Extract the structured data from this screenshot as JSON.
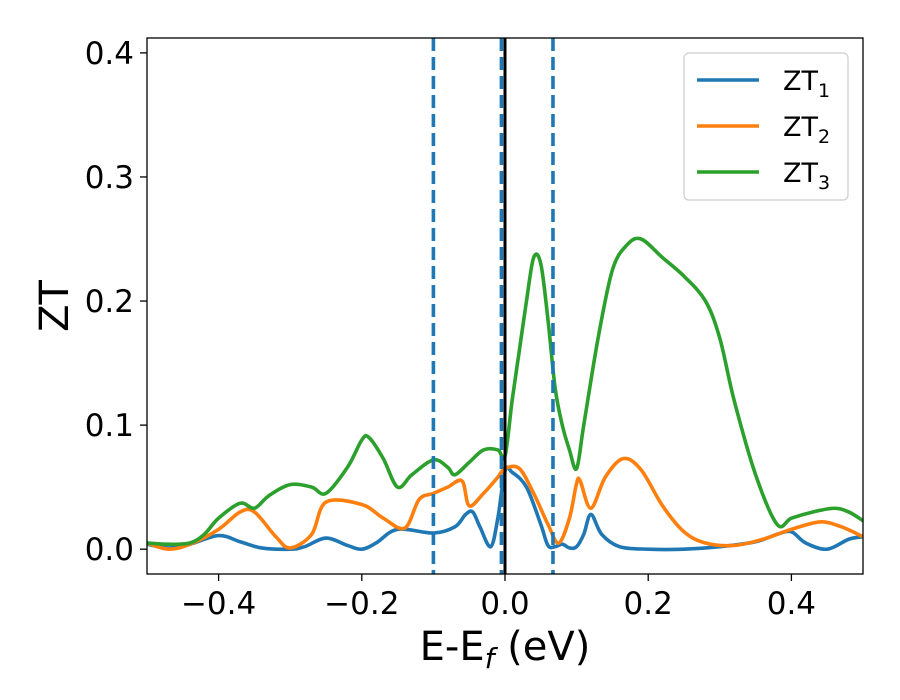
{
  "chart_data": {
    "type": "line",
    "xlabel": {
      "prefix": "E-E",
      "sub": "f",
      "suffix": " (eV)"
    },
    "ylabel": "ZT",
    "xlim": [
      -0.5,
      0.5
    ],
    "ylim": [
      -0.02,
      0.412
    ],
    "xticks": [
      -0.4,
      -0.2,
      0.0,
      0.2,
      0.4
    ],
    "xtick_labels": [
      "−0.4",
      "−0.2",
      "0.0",
      "0.2",
      "0.4"
    ],
    "yticks": [
      0.0,
      0.1,
      0.2,
      0.3,
      0.4
    ],
    "ytick_labels": [
      "0.0",
      "0.1",
      "0.2",
      "0.3",
      "0.4"
    ],
    "grid": false,
    "legend_position": "top-right",
    "vlines": [
      {
        "x": -0.1,
        "style": "dashed",
        "color": "#1f77b4"
      },
      {
        "x": -0.005,
        "style": "dashed",
        "color": "#1f77b4"
      },
      {
        "x": 0.067,
        "style": "dashed",
        "color": "#1f77b4"
      },
      {
        "x": 0.0,
        "style": "solid",
        "color": "#000000"
      }
    ],
    "series": [
      {
        "name": "ZT",
        "sub": "1",
        "color": "#1f77b4",
        "x": [
          -0.5,
          -0.47,
          -0.44,
          -0.4,
          -0.37,
          -0.34,
          -0.3,
          -0.28,
          -0.25,
          -0.22,
          -0.2,
          -0.18,
          -0.15,
          -0.1,
          -0.07,
          -0.055,
          -0.045,
          -0.035,
          -0.02,
          -0.01,
          0.0,
          0.01,
          0.03,
          0.05,
          0.06,
          0.07,
          0.08,
          0.09,
          0.1,
          0.11,
          0.12,
          0.135,
          0.16,
          0.2,
          0.25,
          0.3,
          0.35,
          0.38,
          0.4,
          0.42,
          0.45,
          0.48,
          0.5
        ],
        "y": [
          0.004,
          0.001,
          0.004,
          0.011,
          0.006,
          0.001,
          0.0,
          0.002,
          0.009,
          0.003,
          0.0,
          0.005,
          0.016,
          0.013,
          0.018,
          0.028,
          0.03,
          0.018,
          0.002,
          0.025,
          0.063,
          0.062,
          0.05,
          0.02,
          0.003,
          0.002,
          0.004,
          0.001,
          0.002,
          0.012,
          0.028,
          0.012,
          0.002,
          0.0,
          0.0,
          0.002,
          0.006,
          0.012,
          0.014,
          0.005,
          0.0,
          0.008,
          0.01
        ]
      },
      {
        "name": "ZT",
        "sub": "2",
        "color": "#ff7f0e",
        "x": [
          -0.5,
          -0.47,
          -0.44,
          -0.4,
          -0.37,
          -0.35,
          -0.32,
          -0.3,
          -0.27,
          -0.25,
          -0.2,
          -0.17,
          -0.14,
          -0.12,
          -0.1,
          -0.08,
          -0.06,
          -0.05,
          -0.03,
          -0.01,
          0.0,
          0.02,
          0.04,
          0.06,
          0.075,
          0.09,
          0.1,
          0.105,
          0.12,
          0.14,
          0.165,
          0.19,
          0.22,
          0.25,
          0.28,
          0.32,
          0.36,
          0.4,
          0.44,
          0.47,
          0.5
        ],
        "y": [
          0.005,
          0.0,
          0.004,
          0.016,
          0.03,
          0.03,
          0.01,
          0.001,
          0.012,
          0.038,
          0.036,
          0.025,
          0.017,
          0.04,
          0.045,
          0.05,
          0.055,
          0.035,
          0.045,
          0.058,
          0.065,
          0.065,
          0.045,
          0.02,
          0.005,
          0.025,
          0.053,
          0.055,
          0.033,
          0.058,
          0.073,
          0.064,
          0.035,
          0.014,
          0.005,
          0.003,
          0.008,
          0.016,
          0.022,
          0.018,
          0.01
        ]
      },
      {
        "name": "ZT",
        "sub": "3",
        "color": "#2ca02c",
        "x": [
          -0.5,
          -0.47,
          -0.44,
          -0.42,
          -0.4,
          -0.37,
          -0.35,
          -0.33,
          -0.3,
          -0.27,
          -0.25,
          -0.22,
          -0.2,
          -0.19,
          -0.17,
          -0.15,
          -0.13,
          -0.1,
          -0.08,
          -0.07,
          -0.05,
          -0.03,
          -0.01,
          0.0,
          0.01,
          0.02,
          0.03,
          0.04,
          0.05,
          0.06,
          0.07,
          0.08,
          0.09,
          0.1,
          0.11,
          0.13,
          0.15,
          0.17,
          0.19,
          0.22,
          0.25,
          0.28,
          0.3,
          0.32,
          0.35,
          0.38,
          0.4,
          0.43,
          0.46,
          0.48,
          0.5
        ],
        "y": [
          0.005,
          0.004,
          0.005,
          0.012,
          0.025,
          0.037,
          0.033,
          0.043,
          0.052,
          0.05,
          0.045,
          0.066,
          0.088,
          0.09,
          0.073,
          0.05,
          0.06,
          0.072,
          0.066,
          0.06,
          0.07,
          0.08,
          0.08,
          0.075,
          0.12,
          0.16,
          0.2,
          0.235,
          0.23,
          0.185,
          0.13,
          0.1,
          0.08,
          0.065,
          0.1,
          0.17,
          0.225,
          0.245,
          0.25,
          0.235,
          0.22,
          0.2,
          0.17,
          0.12,
          0.06,
          0.02,
          0.025,
          0.03,
          0.033,
          0.03,
          0.023
        ]
      }
    ]
  }
}
